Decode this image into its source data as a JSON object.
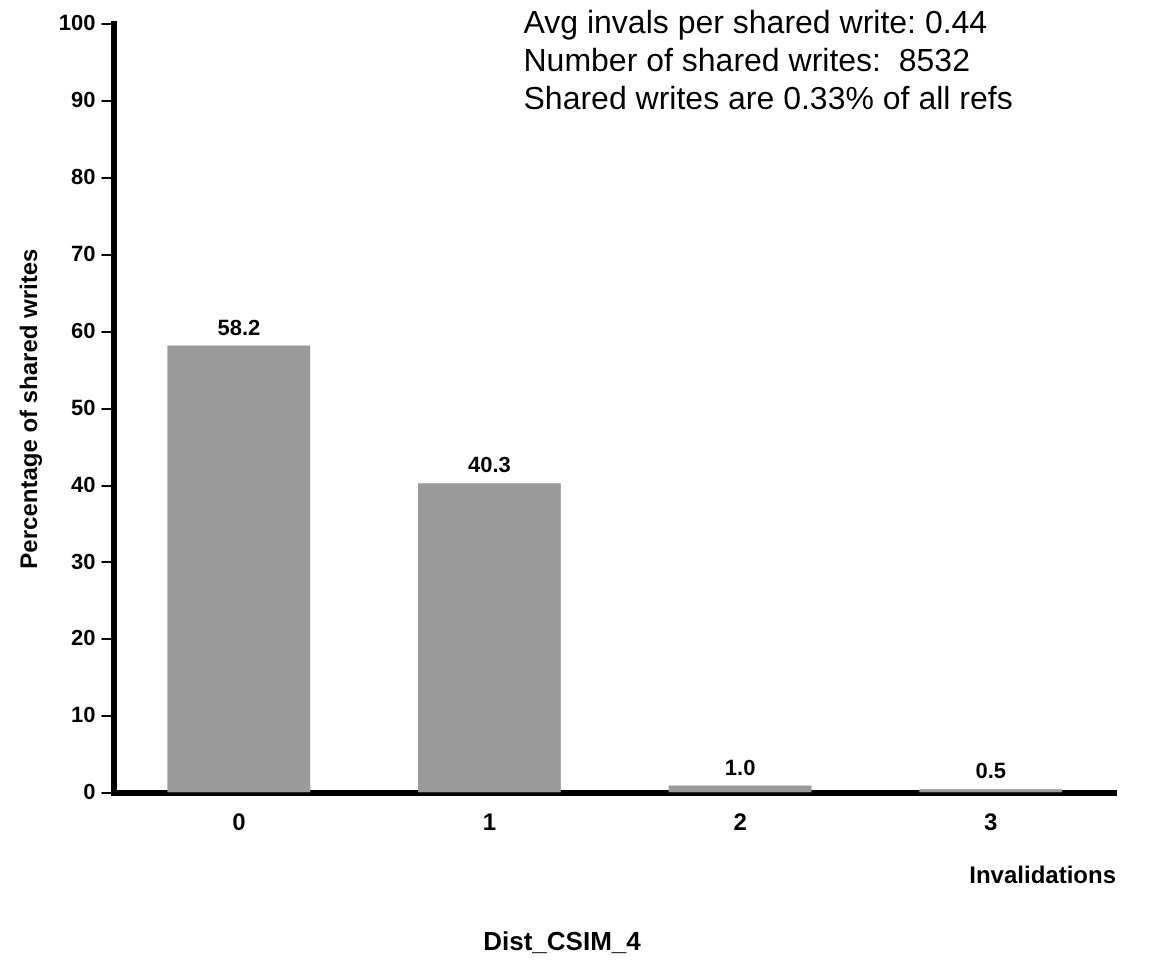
{
  "chart_data": {
    "type": "bar",
    "title": "Dist_CSIM_4",
    "xlabel": "Invalidations",
    "ylabel": "Percentage of shared writes",
    "categories": [
      "0",
      "1",
      "2",
      "3"
    ],
    "values": [
      58.2,
      40.3,
      1.0,
      0.5
    ],
    "color": "#9a9a9a",
    "value_labels": [
      "58.2",
      "40.3",
      "1.0",
      "0.5"
    ],
    "ylim": [
      0,
      100
    ],
    "yticks": [
      0,
      10,
      20,
      30,
      40,
      50,
      60,
      70,
      80,
      90,
      100
    ],
    "grid": false,
    "legend": false,
    "annotations": [
      "Avg invals per shared write: 0.44",
      "Number of shared writes:  8532",
      "Shared writes are 0.33% of all refs"
    ]
  }
}
